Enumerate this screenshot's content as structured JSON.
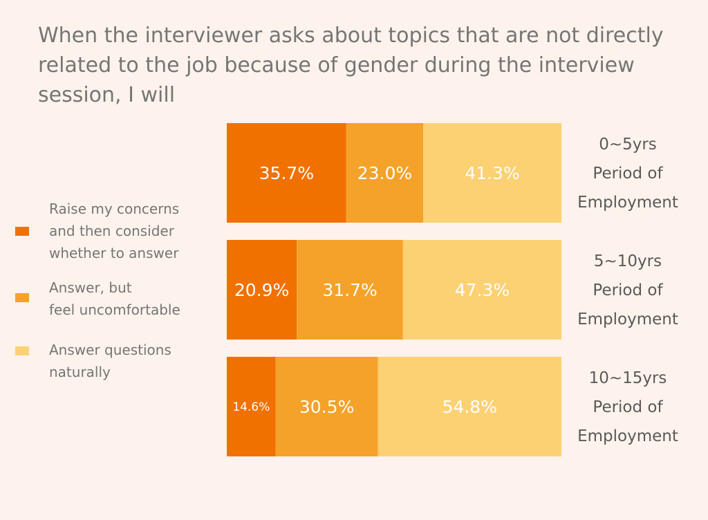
{
  "chart_data": {
    "type": "bar",
    "orientation": "horizontal",
    "stacked": true,
    "normalized_percent": true,
    "title": "When the interviewer asks about topics that are not directly related to the job because of gender during the interview session, I will",
    "categories": [
      [
        "0~5yrs",
        "Period of",
        "Employment"
      ],
      [
        "5~10yrs",
        "Period of",
        "Employment"
      ],
      [
        "10~15yrs",
        "Period of",
        "Employment"
      ]
    ],
    "series": [
      {
        "name": "Raise my concerns\nand then consider\nwhether to answer",
        "color": "#f07000",
        "values": [
          35.7,
          20.9,
          14.6
        ],
        "labels": [
          "35.7%",
          "20.9%",
          "14.6%"
        ]
      },
      {
        "name": "Answer, but\nfeel uncomfortable",
        "color": "#f5a22b",
        "values": [
          23.0,
          31.7,
          30.5
        ],
        "labels": [
          "23.0%",
          "31.7%",
          "30.5%"
        ]
      },
      {
        "name": "Answer questions\nnaturally",
        "color": "#fbd174",
        "values": [
          41.3,
          47.3,
          54.8
        ],
        "labels": [
          "41.3%",
          "47.3%",
          "54.8%"
        ]
      }
    ],
    "legend_position": "left",
    "grid": false,
    "xlim": [
      0,
      100
    ]
  }
}
